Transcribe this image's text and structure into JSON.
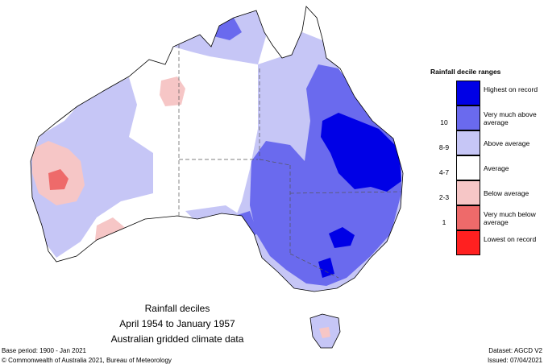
{
  "caption": {
    "line1": "Rainfall deciles",
    "line2": "April 1954 to January 1957",
    "line3": "Australian gridded climate data"
  },
  "legend": {
    "title": "Rainfall decile ranges",
    "items": [
      {
        "label": "Highest on record",
        "color": "#0000e6"
      },
      {
        "label": "Very much above average",
        "color": "#6a6aee"
      },
      {
        "label": "Above average",
        "color": "#c6c6f6"
      },
      {
        "label": "Average",
        "color": "#ffffff"
      },
      {
        "label": "Below average",
        "color": "#f6c6c6"
      },
      {
        "label": "Very much below average",
        "color": "#ee6a6a"
      },
      {
        "label": "Lowest on record",
        "color": "#ff2020"
      }
    ],
    "decile_labels": [
      "10",
      "8-9",
      "4-7",
      "2-3",
      "1"
    ]
  },
  "footer": {
    "base_period": "Base period: 1900 - Jan 2021",
    "dataset": "Dataset: AGCD V2",
    "copyright": "© Commonwealth of Australia 2021, Bureau of Meteorology",
    "issued": "Issued: 07/04/2021"
  }
}
